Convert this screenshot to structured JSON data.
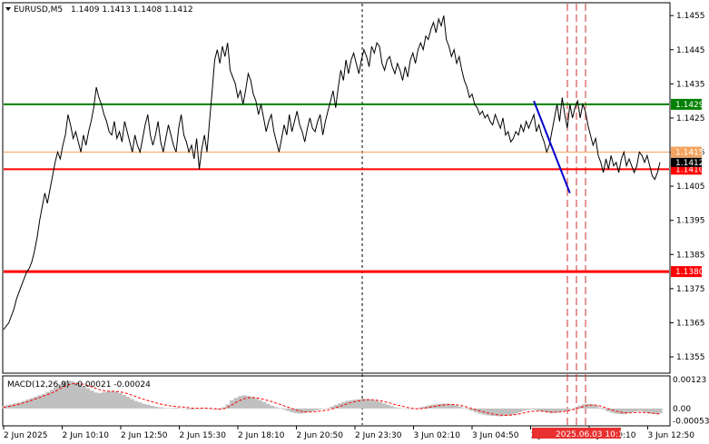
{
  "header": {
    "symbol": "EURUSD,M5",
    "ohlc": "1.1409 1.1413 1.1408 1.1412"
  },
  "macd": {
    "label": "MACD(12,26,9)",
    "values": "-0.00021 -0.00024"
  },
  "colors": {
    "price_line": "#000000",
    "resistance": "#008000",
    "support_red": "#ff0000",
    "orange_level": "#f4a460",
    "trend_line": "#0000cc",
    "macd_hist": "#c0c0c0",
    "macd_signal": "#ff0000",
    "tag_bg_red": "#ff0000",
    "tag_bg_green": "#008000",
    "tag_bg_orange": "#f4a460"
  },
  "chart_data": {
    "type": "line",
    "title": "EURUSD,M5",
    "ylim": [
      1.13505,
      1.14585
    ],
    "y_ticks": [
      "1.1455",
      "1.1445",
      "1.1435",
      "1.1425",
      "1.1415",
      "1.1405",
      "1.1395",
      "1.1385",
      "1.1375",
      "1.1365",
      "1.1355"
    ],
    "x_ticks": [
      "2 Jun 2025",
      "2 Jun 10:10",
      "2 Jun 12:50",
      "2 Jun 15:30",
      "2 Jun 18:10",
      "2 Jun 20:50",
      "2 Jun 23:30",
      "3 Jun 02:10",
      "3 Jun 04:50",
      "3 Jun 07:30",
      "3 Jun 10:10",
      "3 Jun 12:50"
    ],
    "levels": [
      {
        "value": 1.1429,
        "label": "1.1429",
        "color": "green"
      },
      {
        "value": 1.1415,
        "label": "1.1415",
        "color": "orange"
      },
      {
        "value": 1.141,
        "label": "1.1410",
        "color": "red"
      },
      {
        "value": 1.138,
        "label": "1.1380",
        "color": "red"
      }
    ],
    "current_price_label": "1.1412",
    "highlighted_time": "2025.06.03 10:15",
    "series": [
      {
        "values": [
          1.1363,
          1.1364,
          1.1365,
          1.1367,
          1.1369,
          1.1372,
          1.1374,
          1.1376,
          1.1378,
          1.138,
          1.1381,
          1.1383,
          1.1386,
          1.139,
          1.1395,
          1.1399,
          1.1403,
          1.14,
          1.1404,
          1.1408,
          1.1412,
          1.1415,
          1.1413,
          1.1417,
          1.142,
          1.1426,
          1.1423,
          1.1419,
          1.1421,
          1.1418,
          1.1415,
          1.142,
          1.1417,
          1.1421,
          1.1424,
          1.1428,
          1.1434,
          1.1431,
          1.1429,
          1.1426,
          1.1424,
          1.1421,
          1.142,
          1.1424,
          1.1419,
          1.1421,
          1.1418,
          1.1424,
          1.1421,
          1.1418,
          1.1415,
          1.142,
          1.1417,
          1.1415,
          1.1419,
          1.1423,
          1.1426,
          1.142,
          1.1417,
          1.142,
          1.1424,
          1.1418,
          1.1415,
          1.1419,
          1.1423,
          1.142,
          1.1417,
          1.1415,
          1.1422,
          1.1426,
          1.142,
          1.1418,
          1.1415,
          1.1417,
          1.1413,
          1.1419,
          1.141,
          1.1416,
          1.142,
          1.1415,
          1.1424,
          1.1433,
          1.1442,
          1.1445,
          1.1441,
          1.1446,
          1.1443,
          1.1447,
          1.1439,
          1.1437,
          1.1435,
          1.1431,
          1.1433,
          1.1429,
          1.1433,
          1.1438,
          1.1436,
          1.1432,
          1.143,
          1.1426,
          1.1429,
          1.1425,
          1.1421,
          1.1424,
          1.1426,
          1.1421,
          1.1418,
          1.1415,
          1.1419,
          1.1423,
          1.142,
          1.1426,
          1.1421,
          1.1424,
          1.1427,
          1.1423,
          1.1421,
          1.1418,
          1.1422,
          1.1425,
          1.1422,
          1.1421,
          1.1424,
          1.1426,
          1.142,
          1.1424,
          1.1427,
          1.143,
          1.1433,
          1.1428,
          1.1434,
          1.1439,
          1.1436,
          1.1442,
          1.1438,
          1.1442,
          1.1444,
          1.1441,
          1.1438,
          1.1442,
          1.1445,
          1.1443,
          1.144,
          1.1446,
          1.1444,
          1.1447,
          1.1446,
          1.1441,
          1.1439,
          1.1442,
          1.1443,
          1.144,
          1.1438,
          1.1441,
          1.1439,
          1.1436,
          1.144,
          1.1437,
          1.1442,
          1.1444,
          1.1441,
          1.1445,
          1.1447,
          1.1445,
          1.1449,
          1.1448,
          1.1451,
          1.1453,
          1.145,
          1.1454,
          1.1452,
          1.1455,
          1.1448,
          1.1446,
          1.1443,
          1.1445,
          1.1441,
          1.1443,
          1.1439,
          1.1436,
          1.1434,
          1.1431,
          1.1432,
          1.1429,
          1.1428,
          1.1426,
          1.1427,
          1.1425,
          1.1426,
          1.1424,
          1.1423,
          1.1426,
          1.1424,
          1.1422,
          1.1425,
          1.142,
          1.1421,
          1.1418,
          1.1419,
          1.1421,
          1.142,
          1.1423,
          1.1421,
          1.1424,
          1.1422,
          1.1424,
          1.1426,
          1.1421,
          1.1423,
          1.142,
          1.1418,
          1.1415,
          1.1417,
          1.1421,
          1.1425,
          1.1429,
          1.1424,
          1.1431,
          1.1426,
          1.1422,
          1.1429,
          1.1425,
          1.1428,
          1.143,
          1.1425,
          1.1429,
          1.1427,
          1.1423,
          1.142,
          1.1417,
          1.1419,
          1.1414,
          1.1412,
          1.1409,
          1.1413,
          1.141,
          1.1414,
          1.1411,
          1.1412,
          1.1409,
          1.1413,
          1.1415,
          1.1411,
          1.1413,
          1.1411,
          1.1409,
          1.1411,
          1.1415,
          1.1414,
          1.1412,
          1.1414,
          1.1411,
          1.1408,
          1.1407,
          1.1409,
          1.1412
        ]
      }
    ],
    "trend_line": [
      {
        "x": 206,
        "y": 1.143
      },
      {
        "x": 220,
        "y": 1.1403
      }
    ],
    "macd_ylim": [
      -0.0007,
      0.00135
    ],
    "macd_ticks": [
      "0.00123",
      "0.00",
      "-0.00053"
    ],
    "macd_hist": [
      0.0001,
      0.00014,
      0.00018,
      0.00022,
      0.00026,
      0.00032,
      0.00038,
      0.00044,
      0.0005,
      0.00056,
      0.00062,
      0.0007,
      0.0008,
      0.00092,
      0.00105,
      0.00114,
      0.00119,
      0.00117,
      0.00112,
      0.00105,
      0.00096,
      0.00086,
      0.00076,
      0.00068,
      0.00066,
      0.00069,
      0.00072,
      0.00074,
      0.00072,
      0.00066,
      0.00058,
      0.00049,
      0.0004,
      0.00032,
      0.00026,
      0.0002,
      0.00016,
      0.00012,
      8e-05,
      5e-05,
      3e-05,
      2e-05,
      1e-05,
      4e-05,
      2e-05,
      0.0,
      -3e-05,
      -4e-05,
      -2e-05,
      0.0,
      2e-05,
      0.0,
      -2e-05,
      -4e-05,
      -5e-05,
      5e-05,
      0.00018,
      0.00035,
      0.00045,
      0.00052,
      0.00056,
      0.00054,
      0.0005,
      0.00044,
      0.00036,
      0.00028,
      0.0002,
      0.00012,
      6e-05,
      2e-05,
      -4e-05,
      -0.0001,
      -0.00016,
      -0.0002,
      -0.00022,
      -0.0002,
      -0.00016,
      -0.00012,
      -8e-05,
      -4e-05,
      -2e-05,
      2e-05,
      8e-05,
      0.00015,
      0.00022,
      0.00028,
      0.00033,
      0.00036,
      0.00038,
      0.0004,
      0.00041,
      0.0004,
      0.00038,
      0.00034,
      0.00028,
      0.00022,
      0.00016,
      0.0001,
      5e-05,
      2e-05,
      0.0,
      -2e-05,
      -2e-05,
      0.0,
      4e-05,
      8e-05,
      0.00012,
      0.00016,
      0.00018,
      0.0002,
      0.00021,
      0.0002,
      0.00018,
      0.00014,
      8e-05,
      2e-05,
      -4e-05,
      -0.0001,
      -0.00016,
      -0.00022,
      -0.00026,
      -0.00029,
      -0.00031,
      -0.00032,
      -0.00033,
      -0.00032,
      -0.0003,
      -0.00027,
      -0.00022,
      -0.00016,
      -0.0001,
      -6e-05,
      -4e-05,
      -6e-05,
      -0.0001,
      -0.00014,
      -0.00018,
      -0.0002,
      -0.00018,
      -0.00014,
      -0.0001,
      -6e-05,
      -2e-05,
      4e-05,
      0.00012,
      0.00018,
      0.0002,
      0.00018,
      0.00012,
      4e-05,
      -4e-05,
      -0.00012,
      -0.00018,
      -0.00022,
      -0.00024,
      -0.00024,
      -0.0002,
      -0.00016,
      -0.00012,
      -0.0001,
      -0.00014,
      -0.00018,
      -0.00022,
      -0.00024,
      -0.00021
    ],
    "macd_signal": [
      5e-05,
      8e-05,
      0.00011,
      0.00015,
      0.00019,
      0.00024,
      0.00029,
      0.00035,
      0.00041,
      0.00047,
      0.00053,
      0.00059,
      0.00066,
      0.00074,
      0.00083,
      0.00092,
      0.001,
      0.00105,
      0.00107,
      0.00106,
      0.00103,
      0.00098,
      0.00092,
      0.00086,
      0.0008,
      0.00076,
      0.00074,
      0.00073,
      0.00073,
      0.00071,
      0.00068,
      0.00063,
      0.00057,
      0.00051,
      0.00045,
      0.00039,
      0.00034,
      0.00029,
      0.00024,
      0.0002,
      0.00016,
      0.00013,
      0.0001,
      9e-05,
      7e-05,
      6e-05,
      4e-05,
      2e-05,
      1e-05,
      1e-05,
      1e-05,
      1e-05,
      0.0,
      -1e-05,
      -2e-05,
      -1e-05,
      5e-05,
      0.00015,
      0.00025,
      0.00034,
      0.00041,
      0.00045,
      0.00047,
      0.00046,
      0.00043,
      0.00039,
      0.00034,
      0.00029,
      0.00023,
      0.00018,
      0.00012,
      6e-05,
      0.0,
      -6e-05,
      -0.00011,
      -0.00014,
      -0.00015,
      -0.00015,
      -0.00013,
      -0.00011,
      -9e-05,
      -6e-05,
      -2e-05,
      3e-05,
      9e-05,
      0.00015,
      0.00021,
      0.00026,
      0.0003,
      0.00033,
      0.00036,
      0.00037,
      0.00037,
      0.00036,
      0.00033,
      0.0003,
      0.00026,
      0.00021,
      0.00016,
      0.00012,
      8e-05,
      4e-05,
      1e-05,
      -1e-05,
      -1e-05,
      1e-05,
      4e-05,
      7e-05,
      0.0001,
      0.00013,
      0.00015,
      0.00017,
      0.00017,
      0.00016,
      0.00014,
      0.0001,
      5e-05,
      0.0,
      -5e-05,
      -0.0001,
      -0.00015,
      -0.00019,
      -0.00023,
      -0.00026,
      -0.00028,
      -0.00029,
      -0.00029,
      -0.00028,
      -0.00026,
      -0.00023,
      -0.00019,
      -0.00015,
      -0.00012,
      -0.00011,
      -0.00011,
      -0.00012,
      -0.00014,
      -0.00016,
      -0.00016,
      -0.00015,
      -0.00013,
      -0.0001,
      -6e-05,
      -1e-05,
      4e-05,
      9e-05,
      0.00013,
      0.00015,
      0.00014,
      0.00011,
      6e-05,
      0.0,
      -6e-05,
      -0.00011,
      -0.00015,
      -0.00018,
      -0.00019,
      -0.00018,
      -0.00017,
      -0.00016,
      -0.00017,
      -0.00018,
      -0.0002,
      -0.00021,
      -0.00024
    ]
  }
}
